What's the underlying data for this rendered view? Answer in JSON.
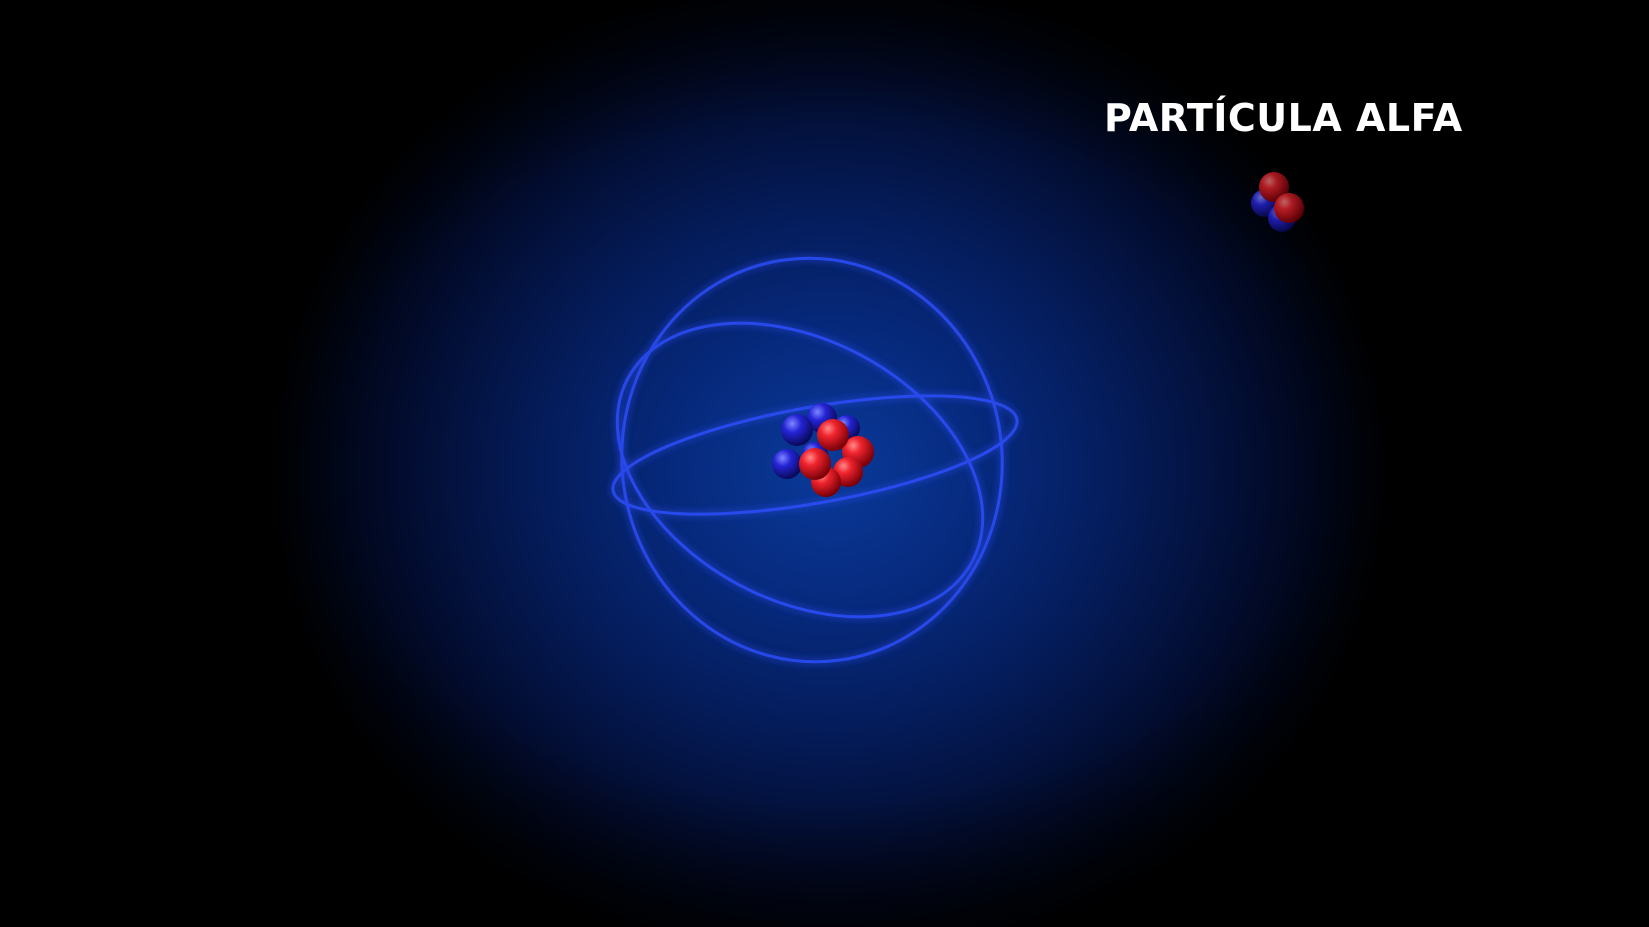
{
  "scene": {
    "label": "PARTÍCULA ALFA"
  },
  "colors": {
    "proton": "#e8232e",
    "neutron": "#2020d8",
    "orbit": "#2a4cff",
    "background_center": "#0a3a9a"
  },
  "icons": {
    "atom": "atom-illustration",
    "alpha_particle": "alpha-particle-illustration"
  }
}
